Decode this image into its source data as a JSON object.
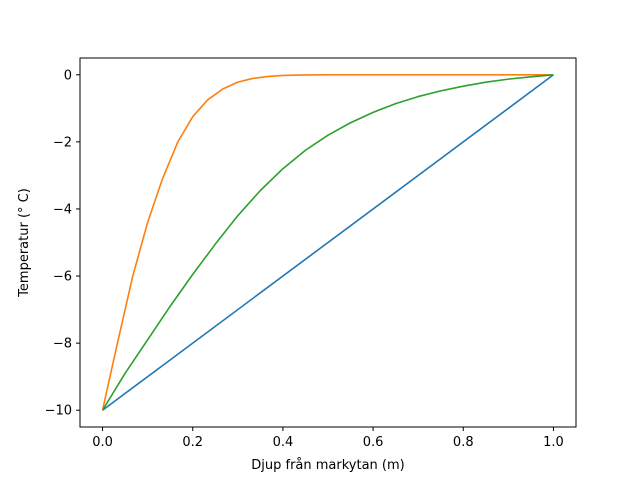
{
  "chart_data": {
    "type": "line",
    "title": "",
    "xlabel": "Djup från markytan (m)",
    "ylabel": "Temperatur (° C)",
    "xlim": [
      -0.05,
      1.05
    ],
    "ylim": [
      -10.5,
      0.5
    ],
    "xticks": [
      0.0,
      0.2,
      0.4,
      0.6,
      0.8,
      1.0
    ],
    "xtick_labels": [
      "0.0",
      "0.2",
      "0.4",
      "0.6",
      "0.8",
      "1.0"
    ],
    "yticks": [
      0,
      -2,
      -4,
      -6,
      -8,
      -10
    ],
    "ytick_labels": [
      "0",
      "−2",
      "−4",
      "−6",
      "−8",
      "−10"
    ],
    "grid": false,
    "series": [
      {
        "color": "#1f77b4",
        "x": [
          0.0,
          1.0
        ],
        "y": [
          -10,
          0
        ]
      },
      {
        "color": "#ff7f0e",
        "x": [
          0.0,
          0.033,
          0.067,
          0.1,
          0.133,
          0.167,
          0.2,
          0.233,
          0.267,
          0.3,
          0.333,
          0.367,
          0.4,
          0.45,
          0.5,
          0.6,
          0.7,
          0.8,
          0.9,
          1.0
        ],
        "y": [
          -10,
          -8.0,
          -6.0,
          -4.4,
          -3.1,
          -2.0,
          -1.25,
          -0.75,
          -0.42,
          -0.22,
          -0.11,
          -0.05,
          -0.02,
          -0.005,
          0,
          0,
          0,
          0,
          0,
          0
        ]
      },
      {
        "color": "#2ca02c",
        "x": [
          0.0,
          0.05,
          0.1,
          0.15,
          0.2,
          0.25,
          0.3,
          0.35,
          0.4,
          0.45,
          0.5,
          0.55,
          0.6,
          0.65,
          0.7,
          0.75,
          0.8,
          0.85,
          0.9,
          0.95,
          1.0
        ],
        "y": [
          -10,
          -8.9,
          -7.9,
          -6.9,
          -5.95,
          -5.05,
          -4.2,
          -3.45,
          -2.8,
          -2.25,
          -1.8,
          -1.43,
          -1.12,
          -0.86,
          -0.65,
          -0.48,
          -0.34,
          -0.22,
          -0.13,
          -0.06,
          0
        ]
      }
    ]
  }
}
